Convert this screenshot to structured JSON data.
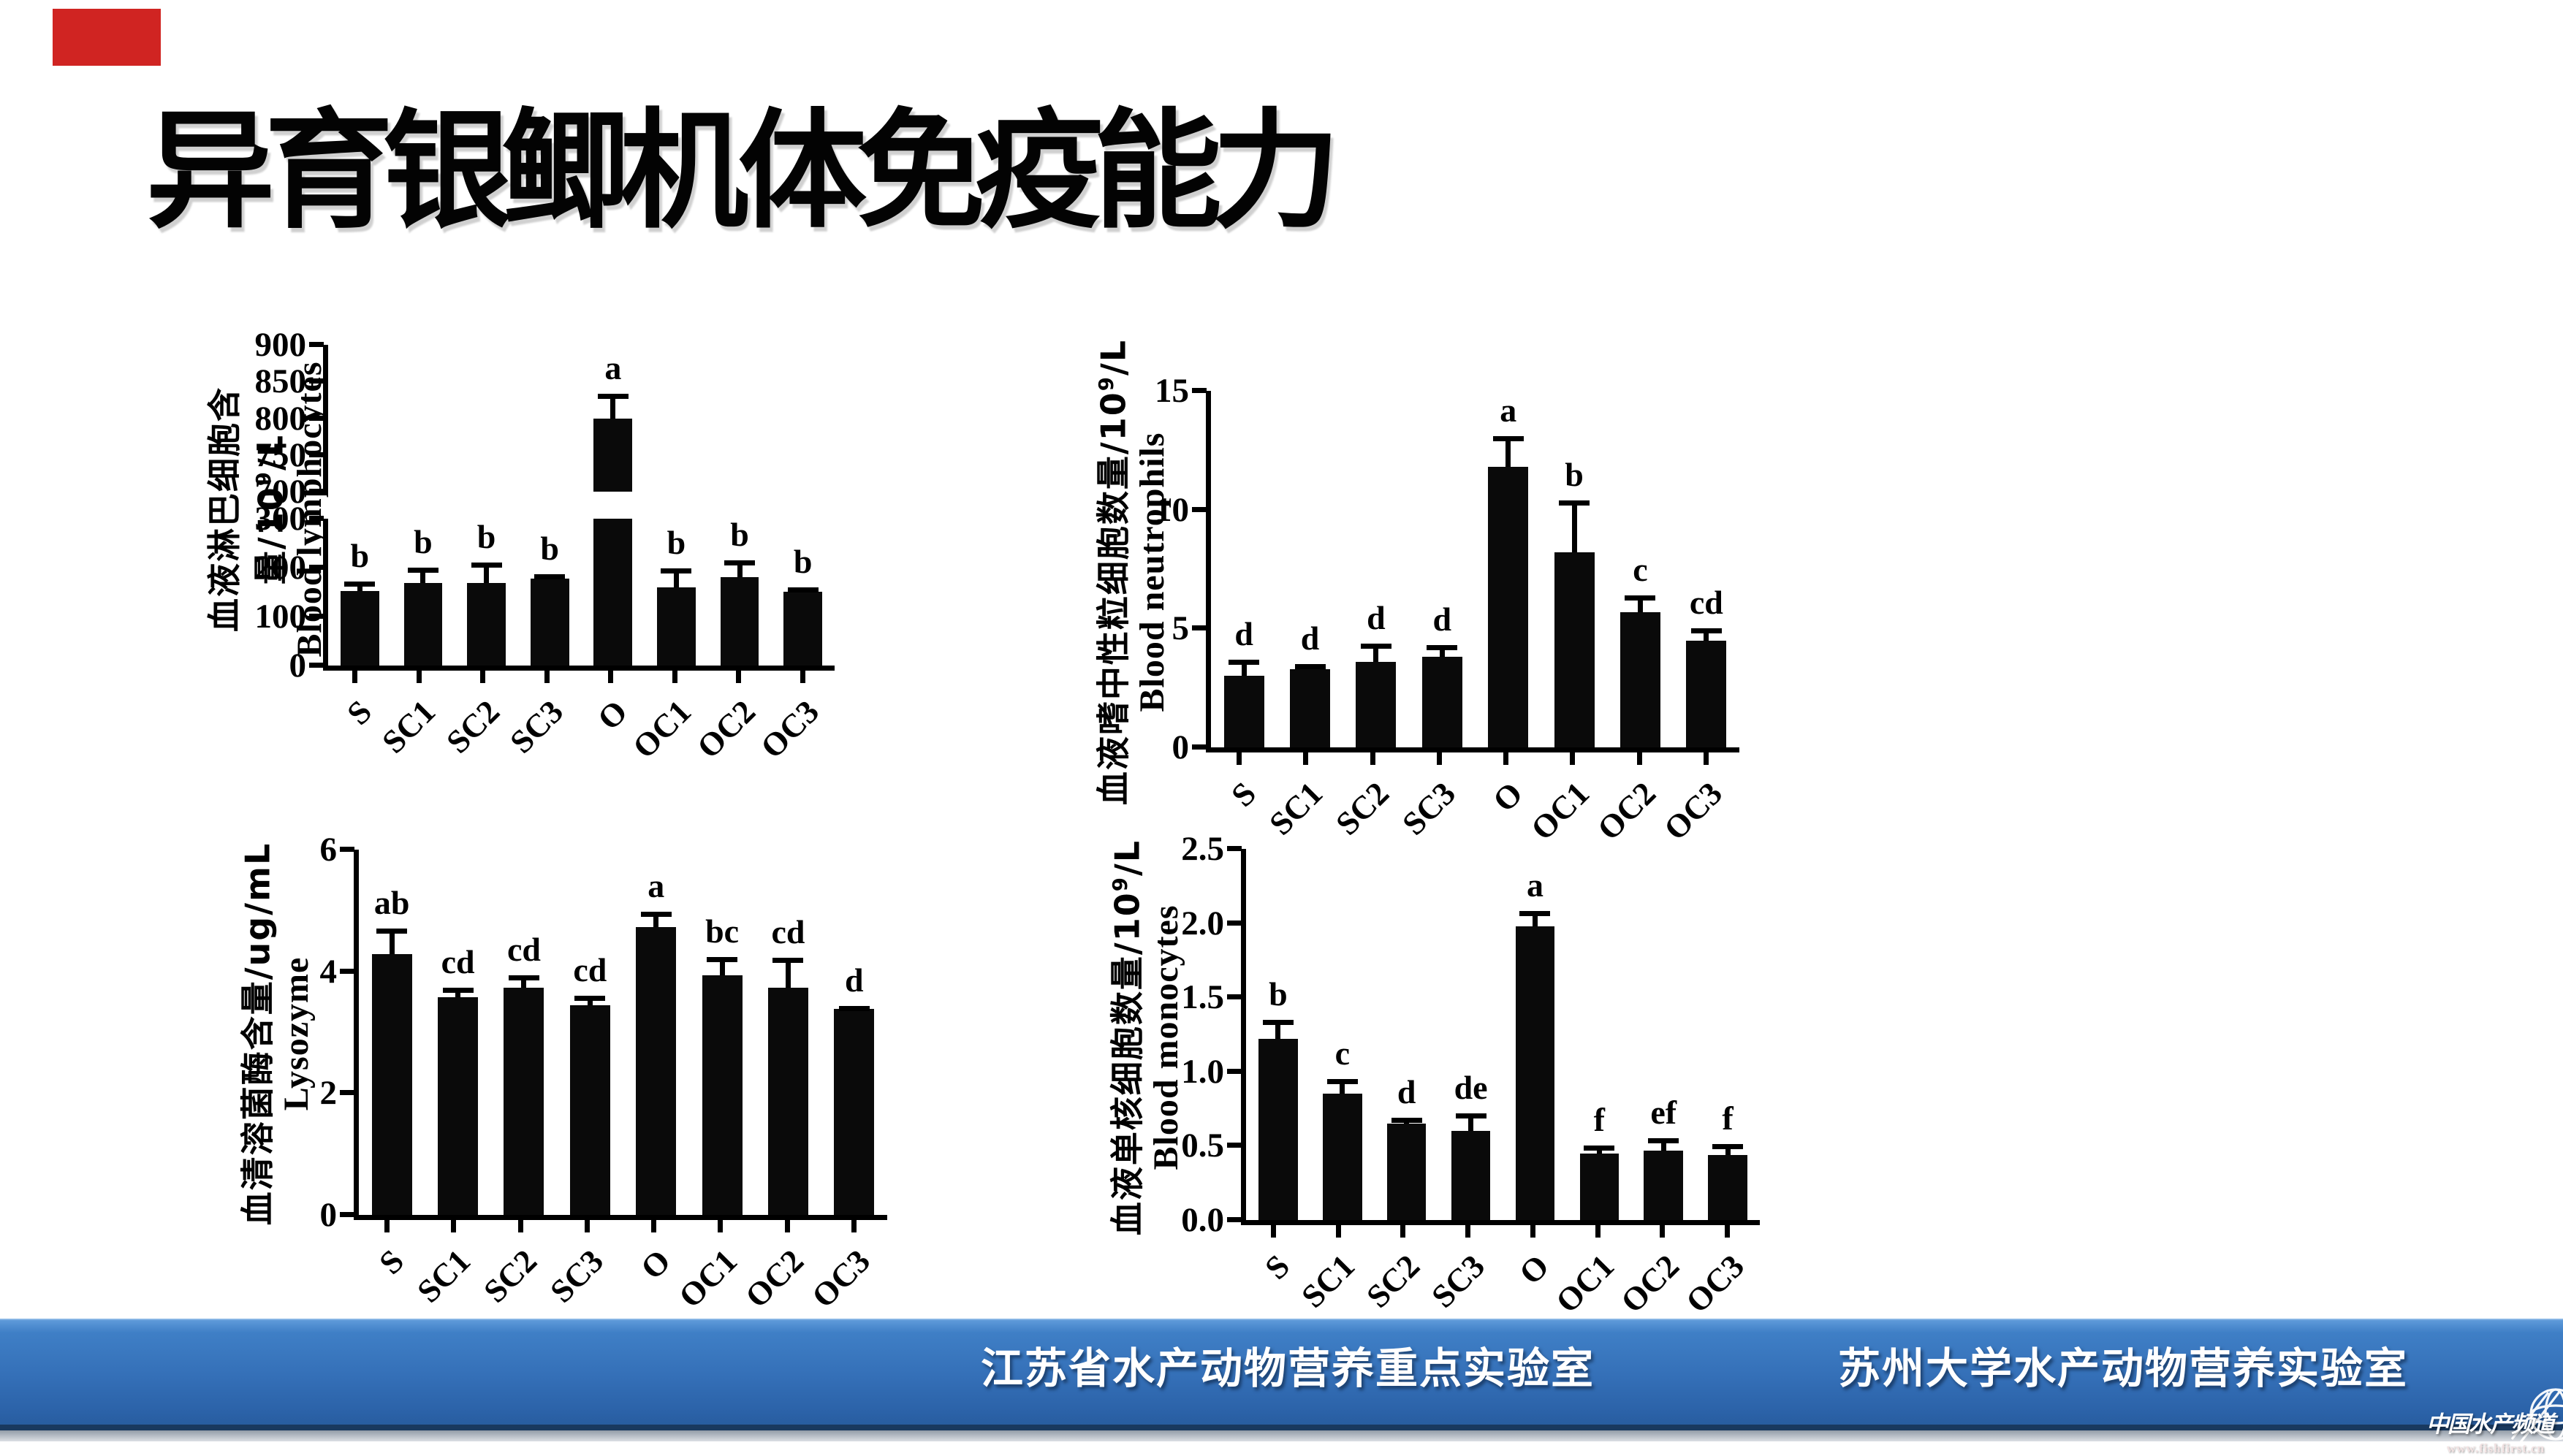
{
  "slide": {
    "title": "异育银鲫机体免疫能力",
    "accent_block_color": "#d02422",
    "footer": {
      "lab_left": "江苏省水产动物营养重点实验室",
      "lab_right": "苏州大学水产动物营养实验室",
      "watermark_name": "中国水产频道",
      "watermark_url": "www.fishfirst.cn",
      "band_top_color": "#3f7fc6",
      "band_bottom_color": "#285da0"
    }
  },
  "categories": [
    "S",
    "SC1",
    "SC2",
    "SC3",
    "O",
    "OC1",
    "OC2",
    "OC3"
  ],
  "chart_data": [
    {
      "id": "lymphocytes",
      "type": "bar",
      "ylabel_cn": "血液淋巴细胞含量/10",
      "ylabel_sup": "9",
      "ylabel_cn_suffix": "/L",
      "ylabel_en": "Blood lymphocytes",
      "categories": [
        "S",
        "SC1",
        "SC2",
        "SC3",
        "O",
        "OC1",
        "OC2",
        "OC3"
      ],
      "values": [
        153,
        168,
        168,
        177,
        800,
        159,
        180,
        151
      ],
      "errors_top": [
        171,
        200,
        210,
        186,
        833,
        198,
        215,
        159
      ],
      "letters": [
        "b",
        "b",
        "b",
        "b",
        "a",
        "b",
        "b",
        "b"
      ],
      "axis_break": true,
      "lower_range": [
        0,
        300
      ],
      "lower_ticks": [
        "0",
        "100",
        "200",
        "300"
      ],
      "upper_range": [
        700,
        900
      ],
      "upper_ticks": [
        "700",
        "750",
        "800",
        "850",
        "900"
      ],
      "grid": false,
      "bar_color": "#000000"
    },
    {
      "id": "neutrophils",
      "type": "bar",
      "ylabel_cn": "血液嗜中性粒细胞数量/10",
      "ylabel_sup": "9",
      "ylabel_cn_suffix": "/L",
      "ylabel_en": "Blood neutrophils",
      "categories": [
        "S",
        "SC1",
        "SC2",
        "SC3",
        "O",
        "OC1",
        "OC2",
        "OC3"
      ],
      "values": [
        3.0,
        3.3,
        3.6,
        3.8,
        11.8,
        8.2,
        5.7,
        4.5
      ],
      "errors_top": [
        3.7,
        3.5,
        4.35,
        4.3,
        13.1,
        10.4,
        6.4,
        5.0
      ],
      "letters": [
        "d",
        "d",
        "d",
        "d",
        "a",
        "b",
        "c",
        "cd"
      ],
      "axis_break": false,
      "ylim": [
        0,
        15
      ],
      "yticks": [
        "0",
        "5",
        "10",
        "15"
      ],
      "grid": false,
      "bar_color": "#000000"
    },
    {
      "id": "lysozyme",
      "type": "bar",
      "ylabel_cn": "血清溶菌酶含量/ug/mL",
      "ylabel_sup": "",
      "ylabel_cn_suffix": "",
      "ylabel_en": "Lysozyme",
      "categories": [
        "S",
        "SC1",
        "SC2",
        "SC3",
        "O",
        "OC1",
        "OC2",
        "OC3"
      ],
      "values": [
        4.28,
        3.58,
        3.73,
        3.45,
        4.73,
        3.94,
        3.73,
        3.39
      ],
      "errors_top": [
        4.7,
        3.73,
        3.94,
        3.6,
        4.98,
        4.24,
        4.23,
        3.43
      ],
      "letters": [
        "ab",
        "cd",
        "cd",
        "cd",
        "a",
        "bc",
        "cd",
        "d"
      ],
      "axis_break": false,
      "ylim": [
        0,
        6
      ],
      "yticks": [
        "0",
        "2",
        "4",
        "6"
      ],
      "grid": false,
      "bar_color": "#000000"
    },
    {
      "id": "monocytes",
      "type": "bar",
      "ylabel_cn": "血液单核细胞数量/10",
      "ylabel_sup": "9",
      "ylabel_cn_suffix": "/L",
      "ylabel_en": "Blood monocytes",
      "categories": [
        "S",
        "SC1",
        "SC2",
        "SC3",
        "O",
        "OC1",
        "OC2",
        "OC3"
      ],
      "values": [
        1.22,
        0.85,
        0.65,
        0.6,
        1.98,
        0.45,
        0.47,
        0.44
      ],
      "errors_top": [
        1.35,
        0.95,
        0.69,
        0.72,
        2.08,
        0.5,
        0.55,
        0.51
      ],
      "letters": [
        "b",
        "c",
        "d",
        "de",
        "a",
        "f",
        "ef",
        "f"
      ],
      "axis_break": false,
      "ylim": [
        0,
        2.5
      ],
      "yticks": [
        "0.0",
        "0.5",
        "1.0",
        "1.5",
        "2.0",
        "2.5"
      ],
      "grid": false,
      "bar_color": "#000000"
    }
  ]
}
